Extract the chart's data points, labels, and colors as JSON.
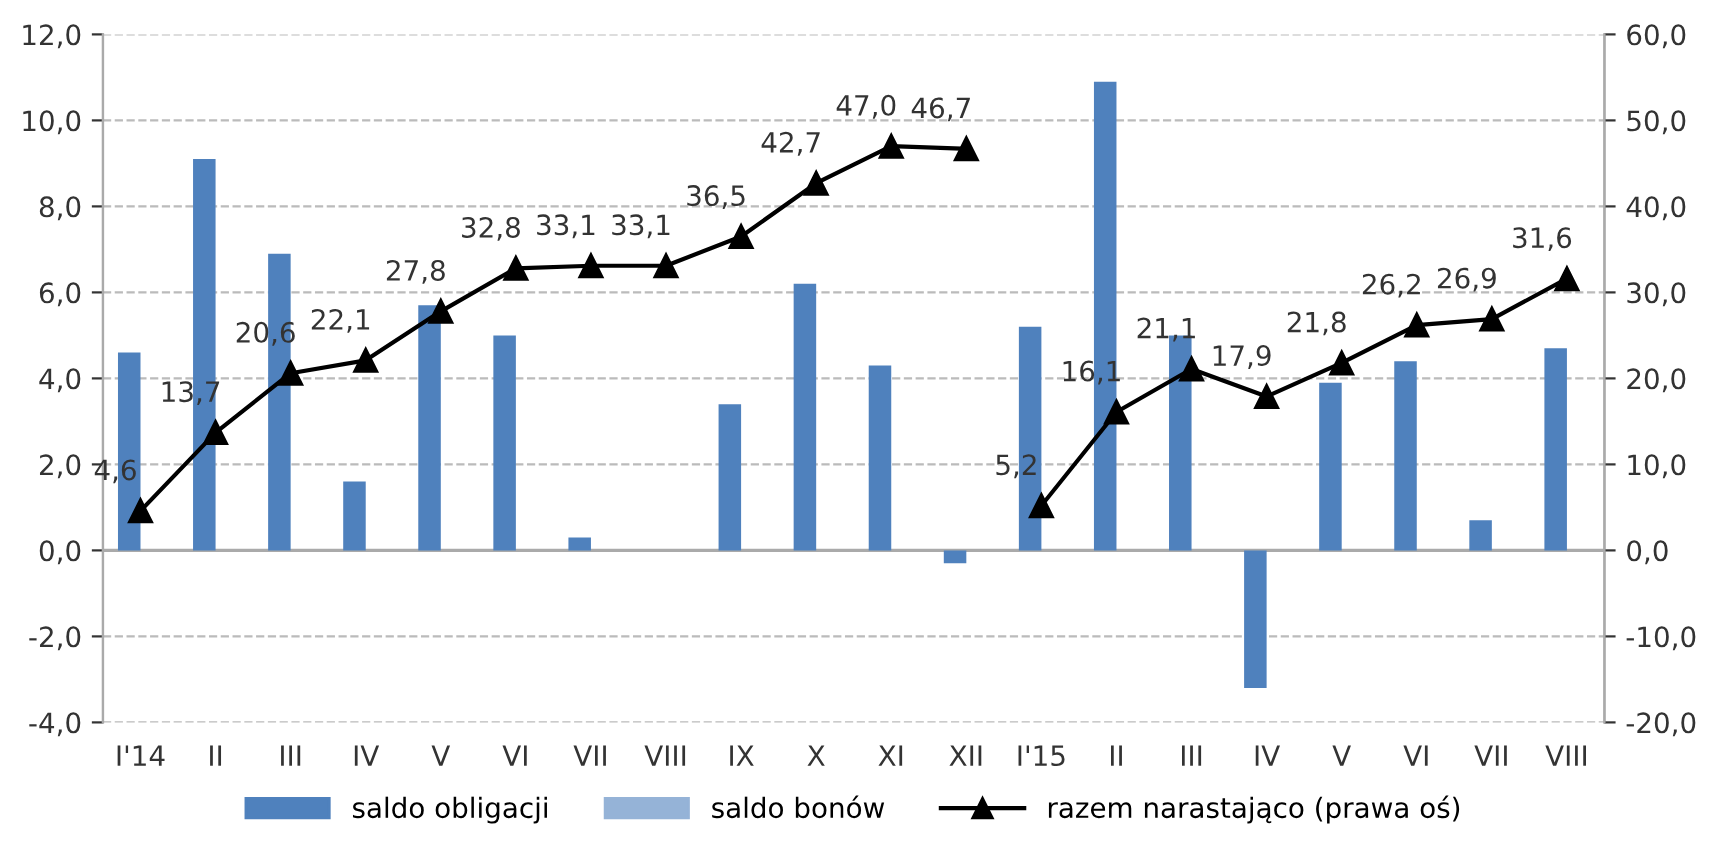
{
  "chart_data": {
    "type": "bar",
    "categories": [
      "I'14",
      "II",
      "III",
      "IV",
      "V",
      "VI",
      "VII",
      "VIII",
      "IX",
      "X",
      "XI",
      "XII",
      "I'15",
      "II",
      "III",
      "IV",
      "V",
      "VI",
      "VII",
      "VIII"
    ],
    "series": [
      {
        "name": "saldo obligacji",
        "color": "#4f81bd",
        "values": [
          4.6,
          9.1,
          6.9,
          1.6,
          5.7,
          5.0,
          0.3,
          0.0,
          3.4,
          6.2,
          4.3,
          -0.3,
          5.2,
          10.9,
          5.0,
          -3.2,
          3.9,
          4.4,
          0.7,
          4.7
        ]
      },
      {
        "name": "saldo bonów",
        "color": "#95b3d7",
        "values": [
          null,
          null,
          null,
          null,
          null,
          null,
          null,
          null,
          null,
          null,
          null,
          null,
          null,
          null,
          null,
          null,
          null,
          null,
          null,
          null
        ]
      },
      {
        "name": "razem narastająco (prawa oś)",
        "type": "line",
        "axis": "y2",
        "color": "#000000",
        "marker": "triangle",
        "values": [
          4.6,
          13.7,
          20.6,
          22.1,
          27.8,
          32.8,
          33.1,
          33.1,
          36.5,
          42.7,
          47.0,
          46.7,
          null,
          null,
          null,
          null,
          null,
          null,
          null,
          null
        ],
        "value_labels": [
          "4,6",
          "13,7",
          "20,6",
          "22,1",
          "27,8",
          "32,8",
          "33,1",
          "33,1",
          "36,5",
          "42,7",
          "47,0",
          "46,7",
          null,
          null,
          null,
          null,
          null,
          null,
          null,
          null
        ]
      },
      {
        "type": "line",
        "axis": "y2",
        "color": "#000000",
        "marker": "triangle",
        "values": [
          null,
          null,
          null,
          null,
          null,
          null,
          null,
          null,
          null,
          null,
          null,
          null,
          5.2,
          16.1,
          21.1,
          17.9,
          21.8,
          26.2,
          26.9,
          31.6
        ],
        "value_labels": [
          null,
          null,
          null,
          null,
          null,
          null,
          null,
          null,
          null,
          null,
          null,
          null,
          "5,2",
          "16,1",
          "21,1",
          "17,9",
          "21,8",
          "26,2",
          "26,9",
          "31,6"
        ]
      }
    ],
    "ylim": [
      -4,
      12
    ],
    "yticks": [
      {
        "value": -4,
        "label": "-4,0"
      },
      {
        "value": -2,
        "label": "-2,0"
      },
      {
        "value": 0,
        "label": "0,0"
      },
      {
        "value": 2,
        "label": "2,0"
      },
      {
        "value": 4,
        "label": "4,0"
      },
      {
        "value": 6,
        "label": "6,0"
      },
      {
        "value": 8,
        "label": "8,0"
      },
      {
        "value": 10,
        "label": "10,0"
      },
      {
        "value": 12,
        "label": "12,0"
      }
    ],
    "y2lim": [
      -20,
      60
    ],
    "y2ticks": [
      {
        "value": -20,
        "label": "-20,0"
      },
      {
        "value": -10,
        "label": "-10,0"
      },
      {
        "value": 0,
        "label": "0,0"
      },
      {
        "value": 10,
        "label": "10,0"
      },
      {
        "value": 20,
        "label": "20,0"
      },
      {
        "value": 30,
        "label": "30,0"
      },
      {
        "value": 40,
        "label": "40,0"
      },
      {
        "value": 50,
        "label": "50,0"
      },
      {
        "value": 60,
        "label": "60,0"
      }
    ],
    "grid": "y",
    "legend": "bottom"
  }
}
